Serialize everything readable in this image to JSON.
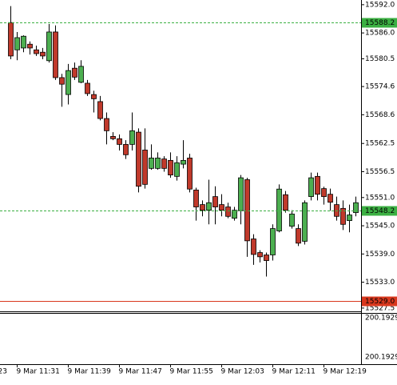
{
  "chart_data": {
    "type": "candlestick",
    "ylim": [
      15526.8,
      15593.0
    ],
    "yticks": [
      {
        "value": 15592,
        "label": "15592.0"
      },
      {
        "value": 15586,
        "label": "15586.0"
      },
      15580.5,
      15574.6,
      15568.6,
      15562.5,
      15556.5,
      {
        "value": 15551,
        "label": "15551.0"
      },
      {
        "value": 15545,
        "label": "15545.0"
      },
      {
        "value": 15539,
        "label": "15539.0"
      },
      {
        "value": 15533,
        "label": "15533.0"
      },
      15527.5
    ],
    "bull_color": "#4caf50",
    "bear_color": "#c0392b",
    "categories": [
      null,
      "9 Mar 11:31",
      null,
      null,
      null,
      null,
      null,
      null,
      null,
      "9 Mar 11:39",
      null,
      null,
      null,
      null,
      null,
      null,
      null,
      "9 Mar 11:47",
      null,
      null,
      null,
      null,
      null,
      null,
      null,
      "9 Mar 11:55",
      null,
      null,
      null,
      null,
      null,
      null,
      null,
      "9 Mar 12:03",
      null,
      null,
      null,
      null,
      null,
      null,
      null,
      "9 Mar 12:11",
      null,
      null,
      null,
      null,
      null,
      null,
      null,
      "9 Mar 12:19",
      null,
      null,
      null,
      null,
      null
    ],
    "x_edge_label": "23",
    "open": [
      15588.2,
      15582.4,
      15582.8,
      15583.6,
      15582.4,
      15581.9,
      15580.1,
      15586.2,
      15576.5,
      15572.9,
      15578.5,
      15575.5,
      15575.3,
      15572.9,
      15571.4,
      15567.8,
      15564.0,
      15563.5,
      15562.3,
      15562.3,
      15564.9,
      15561.1,
      15557.2,
      15557.2,
      15559.2,
      15558.9,
      15555.5,
      15558.1,
      15559.4,
      15552.6,
      15549.5,
      15548.3,
      15551.2,
      15549.5,
      15549.0,
      15546.6,
      15548.2,
      15554.8,
      15542.2,
      15539.3,
      15538.8,
      15538.8,
      15543.9,
      15551.6,
      15544.9,
      15544.4,
      15541.7,
      15551.2,
      15555.5,
      15552.9,
      15551.7,
      15549.5,
      15548.7,
      15546.1,
      15547.8
    ],
    "high": [
      15591.7,
      15586.2,
      15585.5,
      15584.2,
      15583.3,
      15582.8,
      15587.9,
      15587.6,
      15577.3,
      15579.4,
      15579.7,
      15580.2,
      15576.0,
      15573.7,
      15572.6,
      15569.1,
      15564.9,
      15564.4,
      15563.2,
      15569.1,
      15565.7,
      15565.7,
      15562.3,
      15560.6,
      15559.8,
      15560.6,
      15559.8,
      15563.2,
      15560.3,
      15553.1,
      15550.4,
      15554.8,
      15553.4,
      15551.7,
      15549.9,
      15549.0,
      15555.8,
      15555.2,
      15543.2,
      15539.8,
      15539.3,
      15545.3,
      15553.8,
      15552.4,
      15548.3,
      15545.3,
      15550.4,
      15556.3,
      15556.3,
      15553.3,
      15552.9,
      15551.2,
      15550.4,
      15549.5,
      15551.2
    ],
    "low": [
      15580.4,
      15580.2,
      15581.9,
      15581.4,
      15581.1,
      15580.4,
      15579.7,
      15576.0,
      15570.3,
      15570.8,
      15576.0,
      15575.3,
      15572.6,
      15569.1,
      15567.4,
      15562.3,
      15563.2,
      15561.0,
      15559.2,
      15561.0,
      15552.1,
      15552.9,
      15556.9,
      15556.9,
      15556.5,
      15555.2,
      15554.6,
      15557.2,
      15552.1,
      15546.1,
      15547.0,
      15545.3,
      15545.3,
      15547.0,
      15546.6,
      15546.1,
      15545.3,
      15538.4,
      15536.7,
      15537.2,
      15534.2,
      15537.6,
      15543.6,
      15547.8,
      15544.4,
      15540.7,
      15541.0,
      15550.4,
      15550.4,
      15549.5,
      15548.2,
      15546.1,
      15544.1,
      15543.6,
      15547.0
    ],
    "close": [
      15581.1,
      15585.0,
      15585.3,
      15582.8,
      15581.6,
      15581.1,
      15586.2,
      15576.5,
      15575.1,
      15578.0,
      15576.6,
      15578.9,
      15573.1,
      15572.0,
      15567.8,
      15565.2,
      15563.5,
      15562.3,
      15560.1,
      15565.2,
      15553.4,
      15553.8,
      15559.4,
      15559.4,
      15557.2,
      15555.8,
      15558.4,
      15558.9,
      15552.8,
      15549.0,
      15548.3,
      15549.9,
      15549.0,
      15548.3,
      15547.0,
      15548.3,
      15555.2,
      15541.8,
      15538.9,
      15538.4,
      15537.6,
      15544.4,
      15552.8,
      15548.3,
      15547.5,
      15541.3,
      15549.9,
      15555.2,
      15551.7,
      15551.2,
      15550.0,
      15547.0,
      15545.3,
      15547.3,
      15549.9
    ],
    "levels": [
      {
        "value": {
          "value": 15588.2,
          "label": "15588.2"
        },
        "color": "#3cb043",
        "dashed": true
      },
      {
        "value": {
          "value": 15548.2,
          "label": "15548.2"
        },
        "color": "#3cb043",
        "dashed": true
      },
      {
        "value": {
          "value": 15529,
          "label": "15529.0"
        },
        "color": "#d9381e",
        "dashed": false
      }
    ],
    "indicator_labels": [
      "200.1929",
      "200.1929"
    ]
  }
}
